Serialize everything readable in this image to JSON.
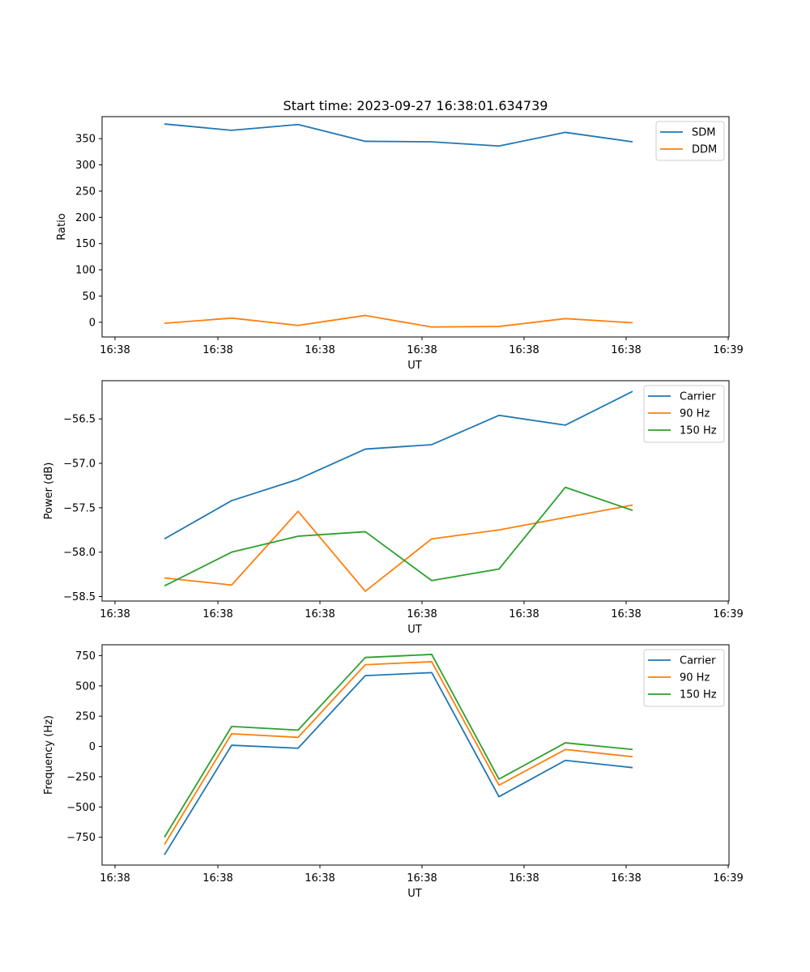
{
  "chart_data": [
    {
      "type": "line",
      "title": "Start time: 2023-09-27 16:38:01.634739",
      "xlabel": "UT",
      "ylabel": "Ratio",
      "x_tick_labels": [
        "16:38",
        "16:38",
        "16:38",
        "16:38",
        "16:38",
        "16:38",
        "16:38"
      ],
      "x_tick_last": "16:39",
      "ylim": [
        -28,
        392
      ],
      "yticks": [
        0,
        50,
        100,
        150,
        200,
        250,
        300,
        350
      ],
      "x": [
        1,
        2,
        3,
        4,
        5,
        6,
        7,
        8
      ],
      "legend_position": "top-right",
      "series": [
        {
          "name": "SDM",
          "color": "#1f77b4",
          "values": [
            378,
            366,
            377,
            345,
            344,
            336,
            362,
            344
          ]
        },
        {
          "name": "DDM",
          "color": "#ff7f0e",
          "values": [
            -2,
            8,
            -6,
            13,
            -9,
            -8,
            7,
            -1
          ]
        }
      ]
    },
    {
      "type": "line",
      "title": "",
      "xlabel": "UT",
      "ylabel": "Power (dB)",
      "x_tick_labels": [
        "16:38",
        "16:38",
        "16:38",
        "16:38",
        "16:38",
        "16:38",
        "16:38"
      ],
      "x_tick_last": "16:39",
      "ylim": [
        -58.55,
        -56.07
      ],
      "yticks": [
        -58.5,
        -58.0,
        -57.5,
        -57.0,
        -56.5
      ],
      "ytick_labels": [
        "−58.5",
        "−58.0",
        "−57.5",
        "−57.0",
        "−56.5"
      ],
      "x": [
        1,
        2,
        3,
        4,
        5,
        6,
        7,
        8
      ],
      "legend_position": "top-right",
      "series": [
        {
          "name": "Carrier",
          "color": "#1f77b4",
          "values": [
            -57.85,
            -57.42,
            -57.18,
            -56.84,
            -56.79,
            -56.46,
            -56.57,
            -56.19
          ]
        },
        {
          "name": "90 Hz",
          "color": "#ff7f0e",
          "values": [
            -58.29,
            -58.37,
            -57.54,
            -58.44,
            -57.85,
            -57.75,
            -57.61,
            -57.47
          ]
        },
        {
          "name": "150 Hz",
          "color": "#2ca02c",
          "values": [
            -58.38,
            -58.0,
            -57.82,
            -57.77,
            -58.32,
            -58.19,
            -57.27,
            -57.53
          ]
        }
      ]
    },
    {
      "type": "line",
      "title": "",
      "xlabel": "UT",
      "ylabel": "Frequency (Hz)",
      "x_tick_labels": [
        "16:38",
        "16:38",
        "16:38",
        "16:38",
        "16:38",
        "16:38",
        "16:38"
      ],
      "x_tick_last": "16:39",
      "ylim": [
        -980,
        840
      ],
      "yticks": [
        -750,
        -500,
        -250,
        0,
        250,
        500,
        750
      ],
      "ytick_labels": [
        "−750",
        "−500",
        "−250",
        "0",
        "250",
        "500",
        "750"
      ],
      "x": [
        1,
        2,
        3,
        4,
        5,
        6,
        7,
        8
      ],
      "legend_position": "top-right",
      "series": [
        {
          "name": "Carrier",
          "color": "#1f77b4",
          "values": [
            -895,
            10,
            -15,
            585,
            610,
            -415,
            -115,
            -175
          ]
        },
        {
          "name": "90 Hz",
          "color": "#ff7f0e",
          "values": [
            -810,
            105,
            75,
            675,
            700,
            -320,
            -25,
            -85
          ]
        },
        {
          "name": "150 Hz",
          "color": "#2ca02c",
          "values": [
            -750,
            165,
            135,
            735,
            760,
            -270,
            30,
            -25
          ]
        }
      ]
    }
  ]
}
